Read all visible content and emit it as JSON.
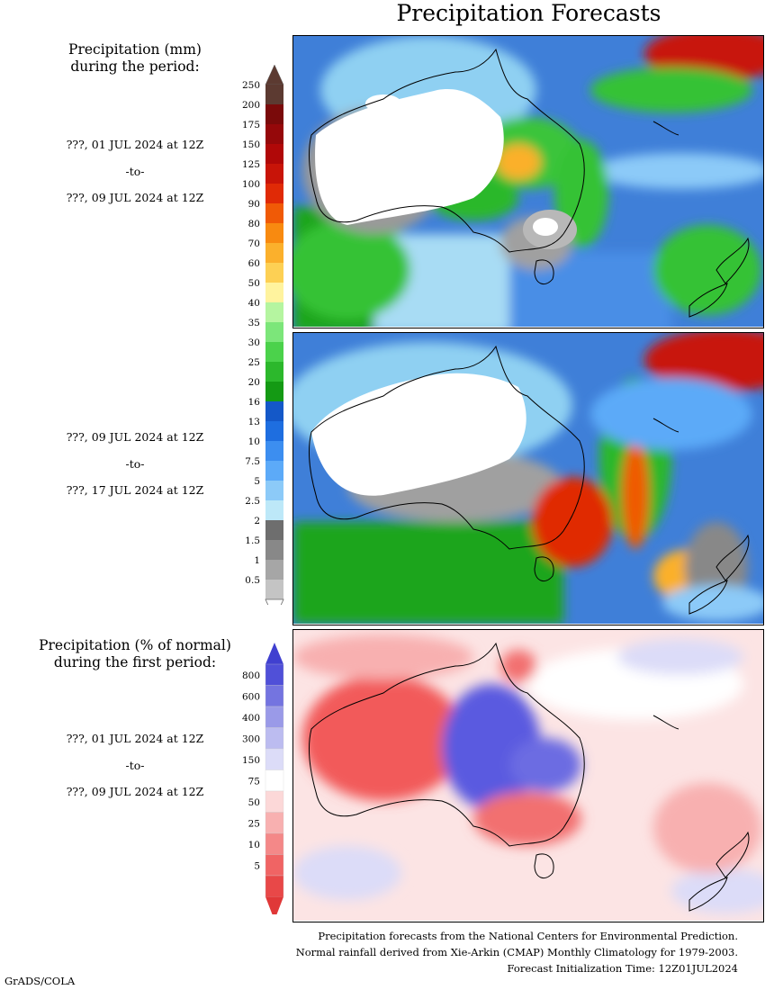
{
  "title": "Precipitation Forecasts",
  "amount_section": {
    "heading_line1": "Precipitation (mm)",
    "heading_line2": "during the period:",
    "colorbar": {
      "labels": [
        "250",
        "200",
        "175",
        "150",
        "125",
        "100",
        "90",
        "80",
        "70",
        "60",
        "50",
        "40",
        "35",
        "30",
        "25",
        "20",
        "16",
        "13",
        "10",
        "7.5",
        "5",
        "2.5",
        "2",
        "1.5",
        "1",
        "0.5"
      ],
      "colors": [
        "#5c3a31",
        "#7a0a0a",
        "#95080a",
        "#b00808",
        "#c81408",
        "#e02a06",
        "#f05a06",
        "#f88a10",
        "#fbb02c",
        "#fdd054",
        "#fff39e",
        "#b5f5a0",
        "#7ce67a",
        "#4bd24b",
        "#2cb82c",
        "#149a14",
        "#1458c8",
        "#1e6ee0",
        "#3c8ef0",
        "#5caaf8",
        "#8ccaf8",
        "#bde8f8",
        "#6e6e6e",
        "#888888",
        "#a6a6a6",
        "#c4c4c4"
      ],
      "top_arrow_color": "#5c3a31",
      "bottom_arrow_color": "#ffffff"
    }
  },
  "period1": {
    "start": "???, 01 JUL 2024 at 12Z",
    "sep": "-to-",
    "end": "???, 09 JUL 2024 at 12Z"
  },
  "period2": {
    "start": "???, 09 JUL 2024 at 12Z",
    "sep": "-to-",
    "end": "???, 17 JUL 2024 at 12Z"
  },
  "percent_section": {
    "heading_line1": "Precipitation (% of normal)",
    "heading_line2": "during the first period:",
    "period": {
      "start": "???, 01 JUL 2024 at 12Z",
      "sep": "-to-",
      "end": "???, 09 JUL 2024 at 12Z"
    },
    "colorbar": {
      "labels": [
        "800",
        "600",
        "400",
        "300",
        "150",
        "75",
        "50",
        "25",
        "10",
        "5"
      ],
      "colors": [
        "#5050d8",
        "#7474e0",
        "#9a9ae8",
        "#bcbcf0",
        "#dcdcf8",
        "#ffffff",
        "#fcd8d8",
        "#f8b0b0",
        "#f48888",
        "#f06464",
        "#e84848"
      ],
      "top_arrow_color": "#4040d0",
      "bottom_arrow_color": "#e03838"
    }
  },
  "footnotes": {
    "line1": "Precipitation forecasts from the National Centers for Environmental Prediction.",
    "line2": "Normal rainfall derived from Xie-Arkin (CMAP) Monthly Climatology for 1979-2003.",
    "line3": "Forecast Initialization Time: 12Z01JUL2024"
  },
  "credit": "GrADS/COLA"
}
